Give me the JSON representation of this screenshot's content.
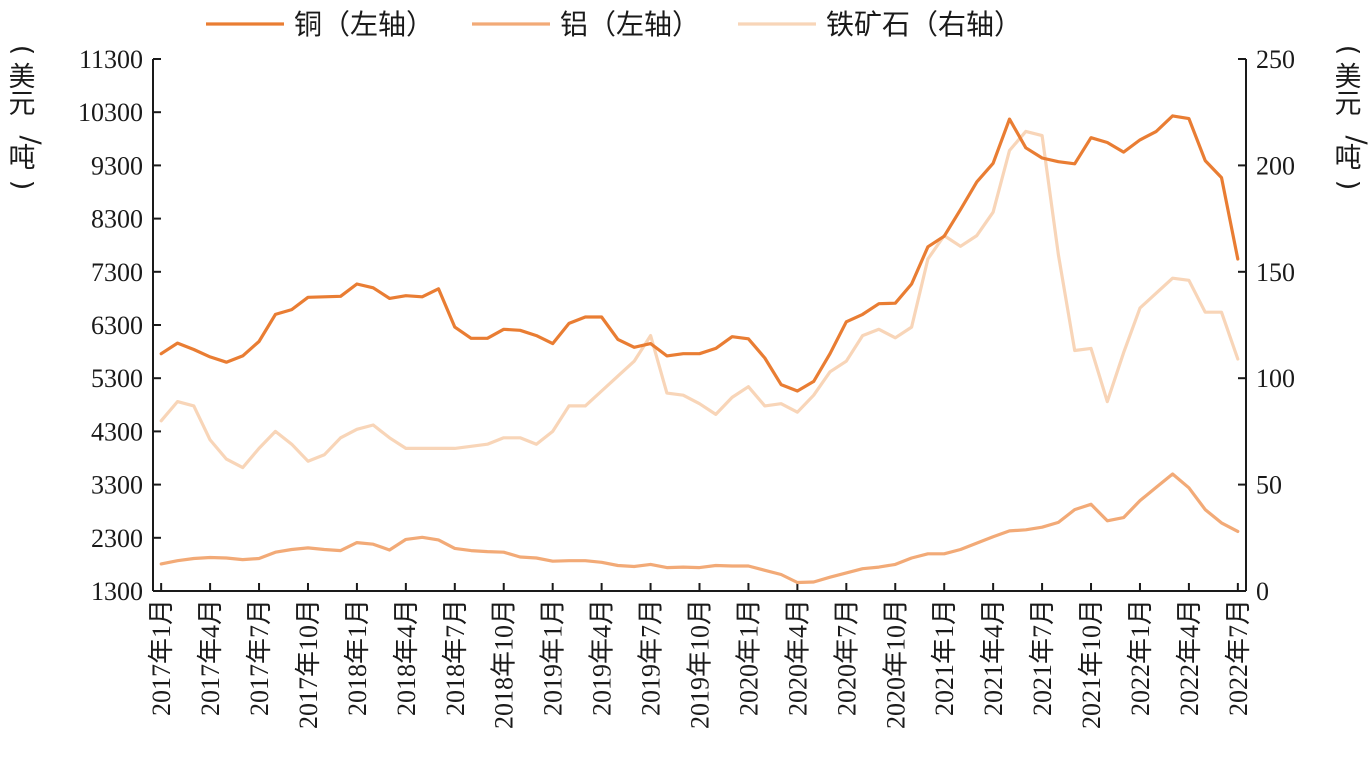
{
  "chart_data": {
    "type": "line",
    "legend_position": "top-center",
    "grid": false,
    "left_axis": {
      "label_chars": [
        "(",
        "美",
        "元",
        "/",
        "吨",
        ")"
      ],
      "min": 1300,
      "max": 11300,
      "ticks": [
        1300,
        2300,
        3300,
        4300,
        5300,
        6300,
        7300,
        8300,
        9300,
        10300,
        11300
      ]
    },
    "right_axis": {
      "label_chars": [
        "(",
        "美",
        "元",
        "/",
        "吨",
        ")"
      ],
      "min": 0,
      "max": 250,
      "ticks": [
        0,
        50,
        100,
        150,
        200,
        250
      ]
    },
    "x": [
      "2017年1月",
      "2017年2月",
      "2017年3月",
      "2017年4月",
      "2017年5月",
      "2017年6月",
      "2017年7月",
      "2017年8月",
      "2017年9月",
      "2017年10月",
      "2017年11月",
      "2017年12月",
      "2018年1月",
      "2018年2月",
      "2018年3月",
      "2018年4月",
      "2018年5月",
      "2018年6月",
      "2018年7月",
      "2018年8月",
      "2018年9月",
      "2018年10月",
      "2018年11月",
      "2018年12月",
      "2019年1月",
      "2019年2月",
      "2019年3月",
      "2019年4月",
      "2019年5月",
      "2019年6月",
      "2019年7月",
      "2019年8月",
      "2019年9月",
      "2019年10月",
      "2019年11月",
      "2019年12月",
      "2020年1月",
      "2020年2月",
      "2020年3月",
      "2020年4月",
      "2020年5月",
      "2020年6月",
      "2020年7月",
      "2020年8月",
      "2020年9月",
      "2020年10月",
      "2020年11月",
      "2020年12月",
      "2021年1月",
      "2021年2月",
      "2021年3月",
      "2021年4月",
      "2021年5月",
      "2021年6月",
      "2021年7月",
      "2021年8月",
      "2021年9月",
      "2021年10月",
      "2021年11月",
      "2021年12月",
      "2022年1月",
      "2022年2月",
      "2022年3月",
      "2022年4月",
      "2022年5月",
      "2022年6月",
      "2022年7月"
    ],
    "x_tick_labels": [
      "2017年1月",
      "2017年4月",
      "2017年7月",
      "2017年10月",
      "2018年1月",
      "2018年4月",
      "2018年7月",
      "2018年10月",
      "2019年1月",
      "2019年4月",
      "2019年7月",
      "2019年10月",
      "2020年1月",
      "2020年4月",
      "2020年7月",
      "2020年10月",
      "2021年1月",
      "2021年4月",
      "2021年7月",
      "2021年10月",
      "2022年1月",
      "2022年4月",
      "2022年7月"
    ],
    "series": [
      {
        "name": "铜（左轴）",
        "axis": "left",
        "color": "#e97d33",
        "values": [
          5760,
          5960,
          5840,
          5700,
          5600,
          5720,
          5990,
          6500,
          6590,
          6820,
          6830,
          6840,
          7070,
          7000,
          6800,
          6850,
          6830,
          6980,
          6260,
          6050,
          6050,
          6220,
          6200,
          6100,
          5950,
          6330,
          6450,
          6450,
          6030,
          5880,
          5950,
          5720,
          5760,
          5760,
          5860,
          6080,
          6040,
          5680,
          5180,
          5060,
          5240,
          5760,
          6360,
          6500,
          6700,
          6710,
          7070,
          7770,
          7970,
          8470,
          8990,
          9340,
          10170,
          9630,
          9440,
          9370,
          9330,
          9820,
          9730,
          9550,
          9780,
          9940,
          10230,
          10180,
          9390,
          9070,
          7540
        ]
      },
      {
        "name": "铝（左轴）",
        "axis": "left",
        "color": "#f2aa77",
        "values": [
          1810,
          1870,
          1910,
          1930,
          1920,
          1890,
          1910,
          2030,
          2080,
          2110,
          2080,
          2060,
          2210,
          2180,
          2070,
          2270,
          2310,
          2260,
          2100,
          2060,
          2040,
          2030,
          1940,
          1920,
          1860,
          1870,
          1870,
          1840,
          1780,
          1760,
          1800,
          1740,
          1750,
          1740,
          1780,
          1770,
          1770,
          1690,
          1610,
          1460,
          1470,
          1560,
          1640,
          1720,
          1750,
          1800,
          1920,
          2000,
          2000,
          2080,
          2200,
          2320,
          2430,
          2450,
          2500,
          2590,
          2830,
          2930,
          2620,
          2680,
          3000,
          3250,
          3500,
          3240,
          2830,
          2580,
          2420
        ]
      },
      {
        "name": "铁矿石（右轴）",
        "axis": "right",
        "color": "#f8d5b8",
        "values": [
          80,
          89,
          87,
          71,
          62,
          58,
          67,
          75,
          69,
          61,
          64,
          72,
          76,
          78,
          72,
          67,
          67,
          67,
          67,
          68,
          69,
          72,
          72,
          69,
          75,
          87,
          87,
          94,
          101,
          108,
          120,
          93,
          92,
          88,
          83,
          91,
          96,
          87,
          88,
          84,
          92,
          103,
          108,
          120,
          123,
          119,
          124,
          156,
          167,
          162,
          167,
          178,
          207,
          216,
          214,
          158,
          113,
          114,
          89,
          112,
          133,
          140,
          147,
          146,
          131,
          131,
          109
        ]
      }
    ]
  }
}
